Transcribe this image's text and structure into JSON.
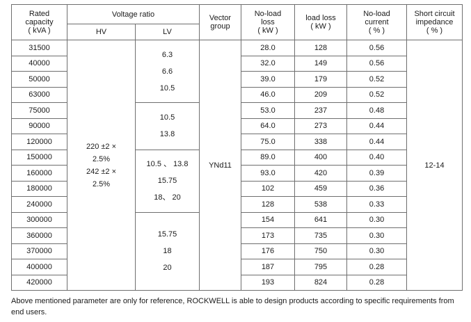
{
  "headers": {
    "rated_capacity": [
      "Rated",
      "capacity",
      "( kVA )"
    ],
    "voltage_ratio": "Voltage ratio",
    "hv": "HV",
    "lv": "LV",
    "vector_group": [
      "Vector",
      "group"
    ],
    "no_load_loss": [
      "No-load",
      "loss",
      "( kW )"
    ],
    "load_loss": [
      "load loss",
      "( kW )"
    ],
    "no_load_current": [
      "No-load",
      "current",
      "( % )"
    ],
    "impedance": [
      "Short circuit",
      "impedance",
      "( % )"
    ]
  },
  "capacities": [
    "31500",
    "40000",
    "50000",
    "63000",
    "75000",
    "90000",
    "120000",
    "150000",
    "160000",
    "180000",
    "240000",
    "300000",
    "360000",
    "370000",
    "400000",
    "420000"
  ],
  "no_load_loss": [
    "28.0",
    "32.0",
    "39.0",
    "46.0",
    "53.0",
    "64.0",
    "75.0",
    "89.0",
    "93.0",
    "102",
    "128",
    "154",
    "173",
    "176",
    "187",
    "193"
  ],
  "load_loss": [
    "128",
    "149",
    "179",
    "209",
    "237",
    "273",
    "338",
    "400",
    "420",
    "459",
    "538",
    "641",
    "735",
    "750",
    "795",
    "824"
  ],
  "no_load_current": [
    "0.56",
    "0.56",
    "0.52",
    "0.52",
    "0.48",
    "0.44",
    "0.44",
    "0.40",
    "0.39",
    "0.36",
    "0.33",
    "0.30",
    "0.30",
    "0.30",
    "0.28",
    "0.28"
  ],
  "hv": [
    "220 ±2 ×",
    "2.5%",
    "242 ±2 ×",
    "2.5%"
  ],
  "lv_groups": [
    [
      "6.3",
      "6.6",
      "10.5"
    ],
    [
      "10.5",
      "13.8"
    ],
    [
      "10.5 、 13.8",
      "15.75",
      "18、 20"
    ],
    [
      "15.75",
      "18",
      "20"
    ]
  ],
  "vector_group": "YNd11",
  "impedance": "12-14",
  "footer": "Above mentioned parameter are only for reference, ROCKWELL is able to design products according to specific requirements from end users."
}
